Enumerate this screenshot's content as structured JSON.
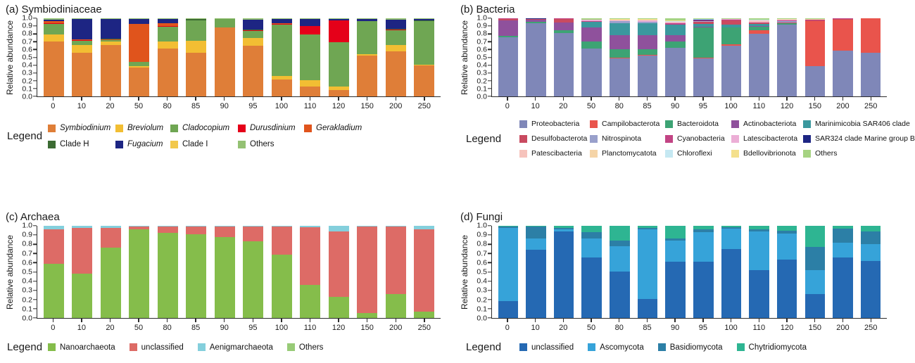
{
  "axis": {
    "yticks": [
      "1.0",
      "0.9",
      "0.8",
      "0.7",
      "0.6",
      "0.5",
      "0.4",
      "0.3",
      "0.2",
      "0.1",
      "0.0"
    ]
  },
  "panels": {
    "a": {
      "title": "(a) Symbiodiniaceae",
      "ylabel": "Relative abundance",
      "legend_title": "Legend"
    },
    "b": {
      "title": "(b) Bacteria",
      "ylabel": "Relative abundance",
      "legend_title": "Legend"
    },
    "c": {
      "title": "(c) Archaea",
      "ylabel": "Relative abundance",
      "legend_title": "Legend"
    },
    "d": {
      "title": "(d) Fungi",
      "ylabel": "Relative abundance",
      "legend_title": "Legend"
    }
  },
  "chart_data": [
    {
      "panel": "a",
      "type": "bar",
      "stacked": true,
      "title": "(a) Symbiodiniaceae",
      "xlabel": "",
      "ylabel": "Relative abundance",
      "ylim": [
        0,
        1
      ],
      "legend_position": "bottom",
      "categories": [
        "0",
        "10",
        "20",
        "50",
        "80",
        "85",
        "90",
        "95",
        "100",
        "110",
        "120",
        "150",
        "200",
        "250"
      ],
      "series": [
        {
          "name": "Symbiodinium",
          "italic": true,
          "color": "#DF7E38",
          "values": [
            0.7,
            0.56,
            0.66,
            0.37,
            0.61,
            0.56,
            0.88,
            0.65,
            0.22,
            0.13,
            0.08,
            0.52,
            0.58,
            0.4
          ]
        },
        {
          "name": "Breviolum",
          "italic": true,
          "color": "#F2BE33",
          "values": [
            0.09,
            0.1,
            0.04,
            0.02,
            0.09,
            0.15,
            0,
            0.1,
            0.04,
            0.08,
            0.05,
            0.02,
            0.08,
            0.01
          ]
        },
        {
          "name": "Cladocopium",
          "italic": true,
          "color": "#6FA653",
          "values": [
            0.135,
            0.05,
            0.02,
            0.05,
            0.19,
            0.26,
            0.11,
            0.09,
            0.66,
            0.58,
            0.56,
            0.42,
            0.19,
            0.55
          ]
        },
        {
          "name": "Durusdinium",
          "italic": true,
          "color": "#E50019",
          "values": [
            0.01,
            0.015,
            0.005,
            0.005,
            0.01,
            0,
            0,
            0.01,
            0.005,
            0.11,
            0.28,
            0,
            0.01,
            0
          ]
        },
        {
          "name": "Gerakladium",
          "italic": true,
          "color": "#E0541C",
          "values": [
            0.025,
            0.005,
            0.005,
            0.48,
            0.035,
            0,
            0,
            0,
            0.01,
            0,
            0,
            0,
            0,
            0.005
          ]
        },
        {
          "name": "Clade H",
          "italic": false,
          "color": "#3C6B33",
          "values": [
            0.005,
            0,
            0.005,
            0,
            0.005,
            0.02,
            0.005,
            0.005,
            0.005,
            0,
            0.005,
            0.005,
            0.005,
            0.005
          ]
        },
        {
          "name": "Fugacium",
          "italic": true,
          "color": "#1D2583",
          "values": [
            0.02,
            0.26,
            0.26,
            0.065,
            0.05,
            0,
            0,
            0.13,
            0.05,
            0.09,
            0.02,
            0.025,
            0.115,
            0.025
          ]
        },
        {
          "name": "Clade I",
          "italic": false,
          "color": "#F2C84B",
          "values": [
            0,
            0,
            0,
            0,
            0,
            0,
            0,
            0,
            0,
            0,
            0,
            0,
            0,
            0
          ]
        },
        {
          "name": "Others",
          "italic": false,
          "color": "#94C173",
          "values": [
            0.015,
            0.01,
            0.005,
            0.01,
            0.01,
            0.01,
            0.005,
            0.015,
            0.01,
            0.01,
            0.005,
            0.01,
            0.02,
            0.005
          ]
        }
      ]
    },
    {
      "panel": "b",
      "type": "bar",
      "stacked": true,
      "title": "(b) Bacteria",
      "xlabel": "",
      "ylabel": "Relative abundance",
      "ylim": [
        0,
        1
      ],
      "legend_position": "bottom",
      "categories": [
        "0",
        "10",
        "20",
        "50",
        "80",
        "85",
        "90",
        "95",
        "100",
        "110",
        "120",
        "150",
        "200",
        "250"
      ],
      "series": [
        {
          "name": "Proteobacteria",
          "color": "#7F87B8",
          "values": [
            0.755,
            0.94,
            0.815,
            0.61,
            0.49,
            0.525,
            0.625,
            0.485,
            0.65,
            0.8,
            0.915,
            0.39,
            0.585,
            0.555
          ]
        },
        {
          "name": "Campilobacterota",
          "color": "#E9544C",
          "values": [
            0,
            0,
            0,
            0,
            0.01,
            0.01,
            0,
            0.01,
            0.015,
            0.045,
            0.005,
            0.575,
            0.4,
            0.445
          ]
        },
        {
          "name": "Bacteroidota",
          "color": "#3DA374",
          "values": [
            0.02,
            0.015,
            0.035,
            0.095,
            0.1,
            0.07,
            0.075,
            0.385,
            0.22,
            0.045,
            0.02,
            0,
            0,
            0
          ]
        },
        {
          "name": "Actinobacteriota",
          "color": "#8F519C",
          "values": [
            0.195,
            0.025,
            0.095,
            0.18,
            0.185,
            0.18,
            0.08,
            0.015,
            0,
            0.01,
            0,
            0,
            0,
            0
          ]
        },
        {
          "name": "Marinimicobia SAR406 clade",
          "color": "#3B989E",
          "values": [
            0,
            0,
            0,
            0.07,
            0.155,
            0.155,
            0.14,
            0.03,
            0.03,
            0.03,
            0,
            0,
            0,
            0
          ]
        },
        {
          "name": "Desulfobacterota",
          "color": "#C94A60",
          "values": [
            0.025,
            0.01,
            0.05,
            0,
            0,
            0,
            0,
            0.03,
            0.06,
            0.015,
            0.005,
            0.01,
            0.01,
            0
          ]
        },
        {
          "name": "Nitrospinota",
          "color": "#99A0CB",
          "values": [
            0,
            0,
            0,
            0,
            0.02,
            0.015,
            0,
            0.01,
            0,
            0,
            0.02,
            0,
            0,
            0
          ]
        },
        {
          "name": "Cyanobacteria",
          "color": "#C24484",
          "values": [
            0.005,
            0.005,
            0.005,
            0.005,
            0,
            0,
            0.015,
            0.005,
            0.005,
            0.005,
            0.005,
            0.005,
            0.005,
            0
          ]
        },
        {
          "name": "Latescibacterota",
          "color": "#ECAED6",
          "values": [
            0,
            0,
            0,
            0.02,
            0.01,
            0.015,
            0.015,
            0.005,
            0.01,
            0.005,
            0.01,
            0,
            0,
            0
          ]
        },
        {
          "name": "SAR324 clade Marine group B",
          "color": "#1D2583",
          "values": [
            0,
            0.005,
            0,
            0,
            0,
            0,
            0,
            0.005,
            0,
            0.005,
            0,
            0,
            0,
            0
          ]
        },
        {
          "name": "Patescibacteria",
          "color": "#F6C3BC",
          "values": [
            0,
            0,
            0,
            0,
            0.005,
            0.005,
            0.005,
            0.005,
            0.005,
            0.01,
            0.005,
            0.005,
            0,
            0
          ]
        },
        {
          "name": "Planctomycatota",
          "color": "#F5D4A7",
          "values": [
            0,
            0,
            0,
            0,
            0.005,
            0.005,
            0.005,
            0,
            0,
            0.005,
            0.005,
            0.005,
            0,
            0
          ]
        },
        {
          "name": "Chloroflexi",
          "color": "#C5E8F2",
          "values": [
            0,
            0,
            0,
            0,
            0.005,
            0.005,
            0.005,
            0.005,
            0,
            0.005,
            0.005,
            0,
            0,
            0
          ]
        },
        {
          "name": "Bdellovibrionota",
          "color": "#F4E08D",
          "values": [
            0,
            0,
            0,
            0,
            0.005,
            0.01,
            0.005,
            0.005,
            0,
            0.005,
            0,
            0,
            0,
            0
          ]
        },
        {
          "name": "Others",
          "color": "#A6D382",
          "values": [
            0,
            0,
            0,
            0.02,
            0.01,
            0.005,
            0.03,
            0.005,
            0.005,
            0.015,
            0.005,
            0.01,
            0,
            0
          ]
        }
      ]
    },
    {
      "panel": "c",
      "type": "bar",
      "stacked": true,
      "title": "(c) Archaea",
      "xlabel": "",
      "ylabel": "Relative abundance",
      "ylim": [
        0,
        1
      ],
      "legend_position": "bottom",
      "categories": [
        "0",
        "10",
        "20",
        "50",
        "80",
        "85",
        "90",
        "95",
        "100",
        "110",
        "120",
        "150",
        "200",
        "250"
      ],
      "series": [
        {
          "name": "Nanoarchaeota",
          "color": "#85BD4B",
          "values": [
            0.59,
            0.48,
            0.76,
            0.96,
            0.92,
            0.91,
            0.88,
            0.83,
            0.69,
            0.36,
            0.23,
            0.05,
            0.26,
            0.07
          ]
        },
        {
          "name": "unclassified",
          "color": "#DD6B66",
          "values": [
            0.37,
            0.5,
            0.22,
            0.035,
            0.075,
            0.085,
            0.115,
            0.165,
            0.305,
            0.625,
            0.71,
            0.94,
            0.73,
            0.89
          ]
        },
        {
          "name": "Aenigmarchaeota",
          "color": "#84CFDC",
          "values": [
            0.04,
            0.02,
            0.02,
            0.005,
            0.005,
            0.005,
            0.005,
            0.005,
            0.005,
            0.015,
            0.06,
            0.01,
            0.01,
            0.04
          ]
        },
        {
          "name": "Others",
          "color": "#98CB77",
          "values": [
            0,
            0,
            0,
            0,
            0,
            0,
            0,
            0,
            0,
            0,
            0,
            0,
            0,
            0
          ]
        }
      ]
    },
    {
      "panel": "d",
      "type": "bar",
      "stacked": true,
      "title": "(d) Fungi",
      "xlabel": "",
      "ylabel": "Relative abundance",
      "ylim": [
        0,
        1
      ],
      "legend_position": "bottom",
      "categories": [
        "0",
        "10",
        "20",
        "50",
        "80",
        "85",
        "90",
        "95",
        "100",
        "110",
        "120",
        "150",
        "200",
        "250"
      ],
      "series": [
        {
          "name": "unclassified",
          "color": "#2569B3",
          "values": [
            0.18,
            0.74,
            0.94,
            0.66,
            0.505,
            0.21,
            0.61,
            0.61,
            0.75,
            0.52,
            0.63,
            0.26,
            0.655,
            0.62
          ]
        },
        {
          "name": "Ascomycota",
          "color": "#36A3D9",
          "values": [
            0.8,
            0.12,
            0.02,
            0.2,
            0.275,
            0.75,
            0.23,
            0.32,
            0.22,
            0.42,
            0.29,
            0.26,
            0.165,
            0.18
          ]
        },
        {
          "name": "Basidiomycota",
          "color": "#2C7FA6",
          "values": [
            0.015,
            0.13,
            0.02,
            0.07,
            0.06,
            0.02,
            0.025,
            0.03,
            0.015,
            0.02,
            0.025,
            0.25,
            0.15,
            0.14
          ]
        },
        {
          "name": "Chytridiomycota",
          "color": "#2EB592",
          "values": [
            0.005,
            0.01,
            0.02,
            0.07,
            0.16,
            0.02,
            0.135,
            0.04,
            0.015,
            0.04,
            0.055,
            0.23,
            0.03,
            0.06
          ]
        }
      ]
    }
  ]
}
